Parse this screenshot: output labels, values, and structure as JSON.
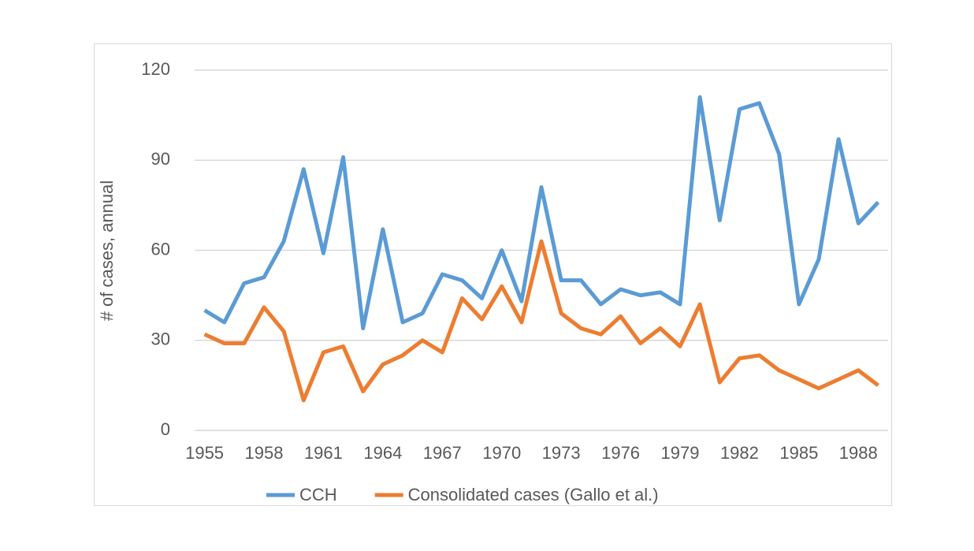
{
  "chart_data": {
    "type": "line",
    "y_label": "# of cases, annual",
    "x": [
      1955,
      1956,
      1957,
      1958,
      1959,
      1960,
      1961,
      1962,
      1963,
      1964,
      1965,
      1966,
      1967,
      1968,
      1969,
      1970,
      1971,
      1972,
      1973,
      1974,
      1975,
      1976,
      1977,
      1978,
      1979,
      1980,
      1981,
      1982,
      1983,
      1984,
      1985,
      1986,
      1987,
      1988,
      1989
    ],
    "series": [
      {
        "name": "CCH",
        "color": "#5b9bd5",
        "values": [
          40,
          36,
          49,
          51,
          63,
          87,
          59,
          91,
          34,
          67,
          36,
          39,
          52,
          50,
          44,
          60,
          43,
          81,
          50,
          50,
          42,
          47,
          45,
          46,
          42,
          111,
          70,
          107,
          109,
          92,
          42,
          57,
          97,
          69,
          76
        ]
      },
      {
        "name": "Consolidated cases (Gallo et al.)",
        "color": "#ed7d31",
        "values": [
          32,
          29,
          29,
          41,
          33,
          10,
          26,
          28,
          13,
          22,
          25,
          30,
          26,
          44,
          37,
          48,
          36,
          63,
          39,
          34,
          32,
          38,
          29,
          34,
          28,
          42,
          16,
          24,
          25,
          20,
          17,
          14,
          17,
          20,
          15
        ]
      }
    ],
    "xlim": [
      1954.5,
      1989.5
    ],
    "xticks": [
      1955,
      1958,
      1961,
      1964,
      1967,
      1970,
      1973,
      1976,
      1979,
      1982,
      1985,
      1988
    ],
    "ylim": [
      0,
      120
    ],
    "yticks": [
      0,
      30,
      60,
      90,
      120
    ],
    "grid": true,
    "legend": "bottom"
  }
}
